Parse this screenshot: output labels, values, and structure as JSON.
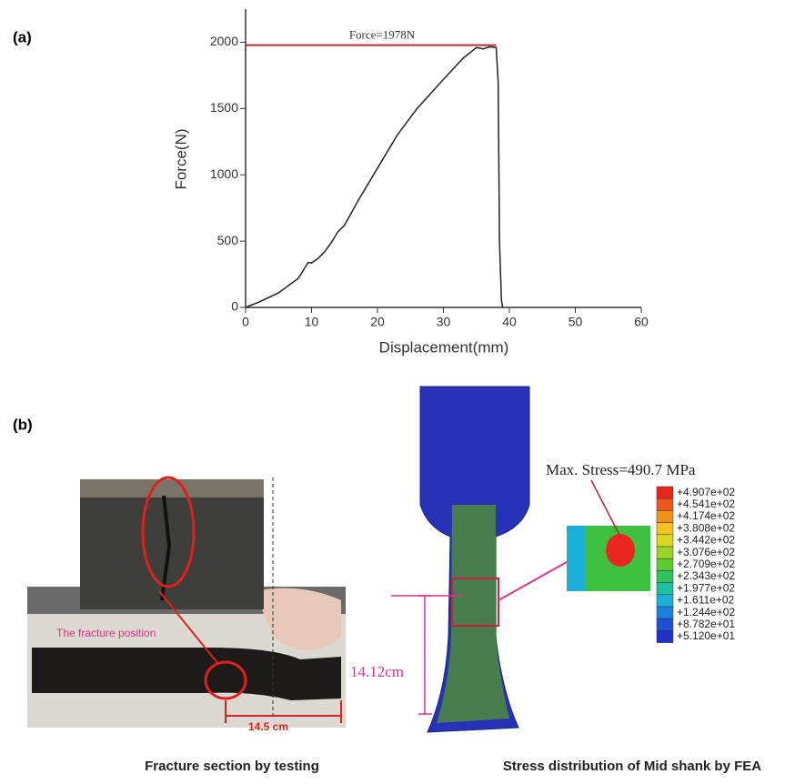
{
  "panel_labels": [
    "(a)",
    "(b)"
  ],
  "chart_data": {
    "type": "line",
    "x_label": "Displacement(mm)",
    "y_label": "Force(N)",
    "x": [
      0,
      2,
      5,
      8,
      9,
      9.5,
      10,
      11,
      12,
      13,
      14,
      15,
      17,
      20,
      23,
      26,
      30,
      33,
      35,
      36,
      37,
      38,
      38.3,
      38.5,
      38.8,
      39
    ],
    "series": [
      {
        "color": "#222222",
        "values": [
          0,
          40,
          110,
          220,
          300,
          340,
          335,
          370,
          420,
          490,
          570,
          620,
          800,
          1050,
          1300,
          1500,
          1720,
          1880,
          1960,
          1950,
          1965,
          1960,
          1700,
          500,
          50,
          0
        ]
      }
    ],
    "xlim": [
      0,
      60
    ],
    "ylim": [
      0,
      2250
    ],
    "xticks": [
      0,
      10,
      20,
      30,
      40,
      50,
      60
    ],
    "yticks": [
      0,
      500,
      1000,
      1500,
      2000
    ],
    "reference_line": {
      "value": 1978,
      "label": "Force=1978N",
      "color": "#c0282d"
    }
  },
  "figure_b": {
    "fracture_label": "The fracture position",
    "fracture_length": "14.5 cm",
    "shank_length": "14.12cm",
    "max_stress": "Max. Stress=490.7 MPa",
    "colorbar": {
      "labels": [
        "+4.907e+02",
        "+4.541e+02",
        "+4.174e+02",
        "+3.808e+02",
        "+3.442e+02",
        "+3.076e+02",
        "+2.709e+02",
        "+2.343e+02",
        "+1.977e+02",
        "+1.611e+02",
        "+1.244e+02",
        "+8.782e+01",
        "+5.120e+01"
      ],
      "colors": [
        "#e8261e",
        "#f0561a",
        "#f3901a",
        "#f6c21c",
        "#d8d820",
        "#9cd424",
        "#5ccc2e",
        "#2ec45a",
        "#1ec0a0",
        "#1ab0d8",
        "#1a80e0",
        "#1c50d8",
        "#2030c8"
      ]
    },
    "captions": [
      "Fracture section by testing",
      "Stress distribution of Mid shank by FEA"
    ]
  }
}
